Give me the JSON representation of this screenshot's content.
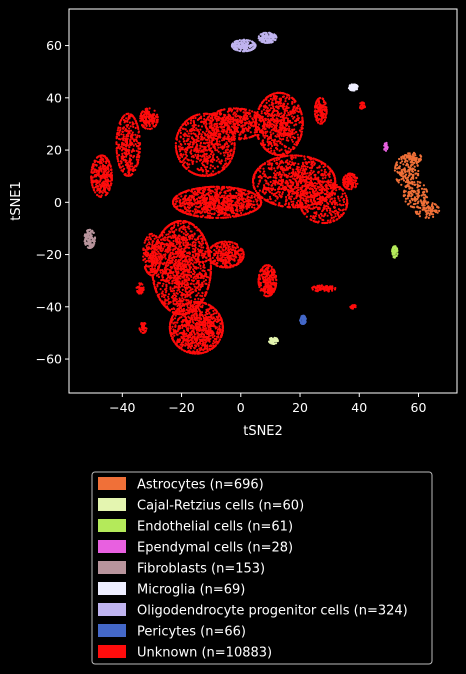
{
  "chart_data": {
    "type": "scatter",
    "title": "",
    "xlabel": "tSNE2",
    "ylabel": "tSNE1",
    "xlim": [
      -58,
      73
    ],
    "ylim": [
      -73,
      74
    ],
    "xticks": [
      -40,
      -20,
      0,
      20,
      40,
      60
    ],
    "yticks": [
      -60,
      -40,
      -20,
      0,
      20,
      40,
      60
    ],
    "grid": false,
    "legend_position": "below",
    "series": [
      {
        "name": "Astrocytes (n=696)",
        "color": "#f07038",
        "clusters": [
          {
            "x": 56,
            "y": 12,
            "rx": 4,
            "ry": 6,
            "n": 140
          },
          {
            "x": 59,
            "y": 3,
            "rx": 4,
            "ry": 5,
            "n": 120
          },
          {
            "x": 63,
            "y": -3,
            "rx": 4,
            "ry": 3,
            "n": 90
          },
          {
            "x": 58,
            "y": 17,
            "rx": 3,
            "ry": 2,
            "n": 50
          }
        ]
      },
      {
        "name": "Cajal-Retzius cells (n=60)",
        "color": "#e4f5b0",
        "clusters": [
          {
            "x": 11,
            "y": -53,
            "rx": 1.5,
            "ry": 1.2,
            "n": 50
          }
        ]
      },
      {
        "name": "Endothelial cells (n=61)",
        "color": "#b4ea5a",
        "clusters": [
          {
            "x": 52,
            "y": -19,
            "rx": 0.9,
            "ry": 2.2,
            "n": 55
          }
        ]
      },
      {
        "name": "Ependymal cells (n=28)",
        "color": "#e860e0",
        "clusters": [
          {
            "x": 49,
            "y": 21,
            "rx": 0.6,
            "ry": 1.8,
            "n": 22
          }
        ]
      },
      {
        "name": "Fibroblasts (n=153)",
        "color": "#b8949c",
        "clusters": [
          {
            "x": -51,
            "y": -14,
            "rx": 1.8,
            "ry": 3.5,
            "n": 110
          }
        ]
      },
      {
        "name": "Microglia (n=69)",
        "color": "#eeeeff",
        "clusters": [
          {
            "x": 38,
            "y": 44,
            "rx": 1.5,
            "ry": 1.2,
            "n": 55
          }
        ]
      },
      {
        "name": "Oligodendrocyte progenitor cells (n=324)",
        "color": "#c0b4f0",
        "clusters": [
          {
            "x": 1,
            "y": 60,
            "rx": 4,
            "ry": 2.2,
            "n": 180
          },
          {
            "x": 9,
            "y": 63,
            "rx": 3,
            "ry": 2,
            "n": 120
          }
        ]
      },
      {
        "name": "Pericytes (n=66)",
        "color": "#4468c8",
        "clusters": [
          {
            "x": 21,
            "y": -45,
            "rx": 1,
            "ry": 1.6,
            "n": 55
          }
        ]
      },
      {
        "name": "Unknown (n=10883)",
        "color": "#ff0c0c",
        "clusters": [
          {
            "x": -20,
            "y": -25,
            "rx": 10,
            "ry": 18,
            "n": 1400
          },
          {
            "x": -15,
            "y": -48,
            "rx": 9,
            "ry": 10,
            "n": 900
          },
          {
            "x": -8,
            "y": 0,
            "rx": 15,
            "ry": 6,
            "n": 900
          },
          {
            "x": -12,
            "y": 22,
            "rx": 10,
            "ry": 12,
            "n": 700
          },
          {
            "x": -2,
            "y": 30,
            "rx": 10,
            "ry": 6,
            "n": 450
          },
          {
            "x": 13,
            "y": 30,
            "rx": 8,
            "ry": 12,
            "n": 700
          },
          {
            "x": 18,
            "y": 8,
            "rx": 14,
            "ry": 10,
            "n": 900
          },
          {
            "x": 28,
            "y": 0,
            "rx": 8,
            "ry": 8,
            "n": 350
          },
          {
            "x": -38,
            "y": 22,
            "rx": 4,
            "ry": 12,
            "n": 350
          },
          {
            "x": -47,
            "y": 10,
            "rx": 3.5,
            "ry": 8,
            "n": 300
          },
          {
            "x": -31,
            "y": 32,
            "rx": 3,
            "ry": 4,
            "n": 150
          },
          {
            "x": -5,
            "y": -20,
            "rx": 6,
            "ry": 5,
            "n": 300
          },
          {
            "x": 9,
            "y": -30,
            "rx": 3,
            "ry": 6,
            "n": 260
          },
          {
            "x": -30,
            "y": -20,
            "rx": 3,
            "ry": 8,
            "n": 200
          },
          {
            "x": 27,
            "y": 35,
            "rx": 2,
            "ry": 5,
            "n": 130
          },
          {
            "x": 37,
            "y": 8,
            "rx": 2.5,
            "ry": 3,
            "n": 120
          },
          {
            "x": 28,
            "y": -33,
            "rx": 4,
            "ry": 1.2,
            "n": 80
          },
          {
            "x": -33,
            "y": -48,
            "rx": 1.2,
            "ry": 2,
            "n": 40
          },
          {
            "x": -34,
            "y": -33,
            "rx": 1.2,
            "ry": 2,
            "n": 40
          },
          {
            "x": 41,
            "y": 37,
            "rx": 1,
            "ry": 1.2,
            "n": 25
          },
          {
            "x": 38,
            "y": -40,
            "rx": 1,
            "ry": 0.7,
            "n": 15
          }
        ]
      }
    ]
  }
}
